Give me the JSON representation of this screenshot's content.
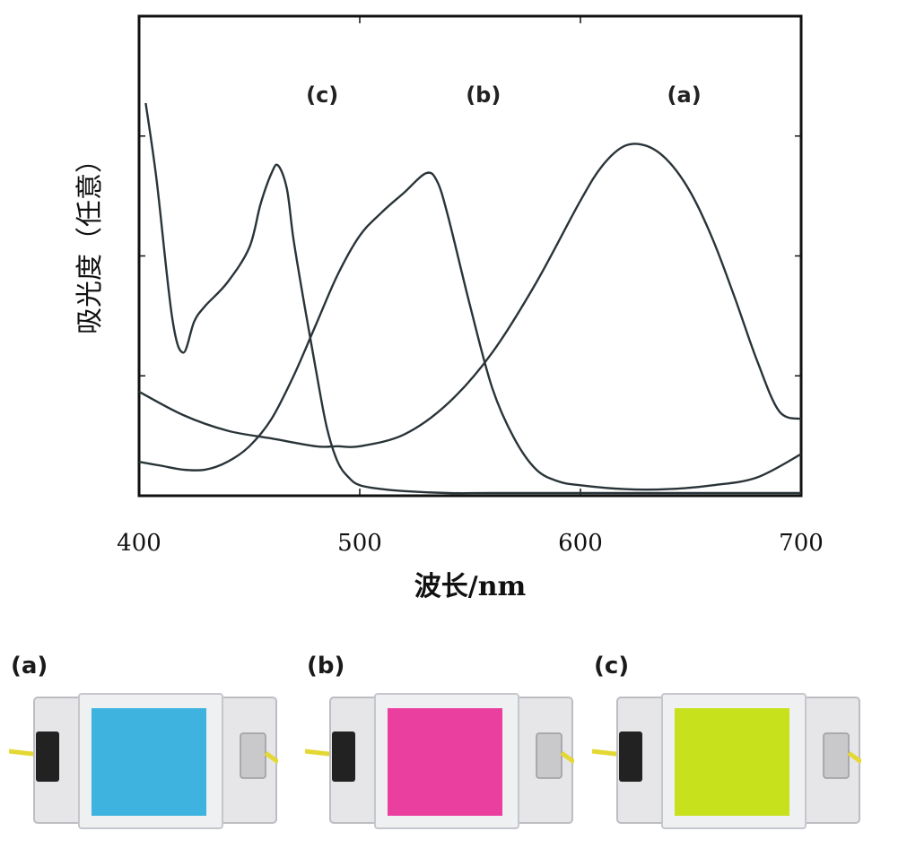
{
  "chart_data": {
    "type": "line",
    "xlabel": "波长/nm",
    "ylabel": "吸光度（任意）",
    "xlim": [
      400,
      700
    ],
    "ylim": [
      0,
      1
    ],
    "x_ticks": [
      400,
      500,
      600,
      700
    ],
    "grid": false,
    "series": [
      {
        "name": "(a)",
        "x": [
          400,
          420,
          440,
          460,
          480,
          490,
          500,
          520,
          540,
          560,
          580,
          600,
          610,
          620,
          630,
          640,
          650,
          660,
          670,
          680,
          690,
          700
        ],
        "y": [
          0.26,
          0.2,
          0.16,
          0.14,
          0.12,
          0.12,
          0.12,
          0.15,
          0.23,
          0.36,
          0.54,
          0.75,
          0.84,
          0.89,
          0.89,
          0.85,
          0.77,
          0.65,
          0.5,
          0.34,
          0.21,
          0.19
        ]
      },
      {
        "name": "(b)",
        "x": [
          400,
          410,
          420,
          430,
          440,
          450,
          460,
          470,
          480,
          490,
          500,
          510,
          520,
          530,
          535,
          540,
          550,
          560,
          570,
          580,
          590,
          600,
          620,
          640,
          660,
          680,
          700
        ],
        "y": [
          0.08,
          0.07,
          0.06,
          0.06,
          0.08,
          0.12,
          0.19,
          0.3,
          0.43,
          0.56,
          0.66,
          0.72,
          0.77,
          0.82,
          0.8,
          0.71,
          0.48,
          0.27,
          0.14,
          0.06,
          0.03,
          0.02,
          0.01,
          0.01,
          0.02,
          0.04,
          0.1
        ]
      },
      {
        "name": "(c)",
        "x": [
          403,
          408,
          415,
          420,
          425,
          430,
          440,
          450,
          455,
          460,
          463,
          467,
          470,
          475,
          480,
          485,
          490,
          495,
          500,
          510,
          520,
          540,
          560,
          600,
          650,
          700
        ],
        "y": [
          1.0,
          0.8,
          0.45,
          0.36,
          0.44,
          0.48,
          0.54,
          0.63,
          0.74,
          0.82,
          0.84,
          0.78,
          0.65,
          0.48,
          0.32,
          0.17,
          0.08,
          0.04,
          0.02,
          0.01,
          0.005,
          0.0,
          0.0,
          0.0,
          0.0,
          0.0
        ]
      }
    ],
    "annotations": [
      "(c)",
      "(b)",
      "(a)"
    ]
  },
  "photos": {
    "items": [
      {
        "label": "(a)",
        "color": "#3fb3df"
      },
      {
        "label": "(b)",
        "color": "#ea3f9f"
      },
      {
        "label": "(c)",
        "color": "#c8e11d"
      }
    ],
    "wire_color": "#e3d834",
    "glass_color": "#e6e6e9",
    "clip_dark": "#222222",
    "clip_light": "#c9c9cc"
  },
  "line_color": "#2a3438"
}
